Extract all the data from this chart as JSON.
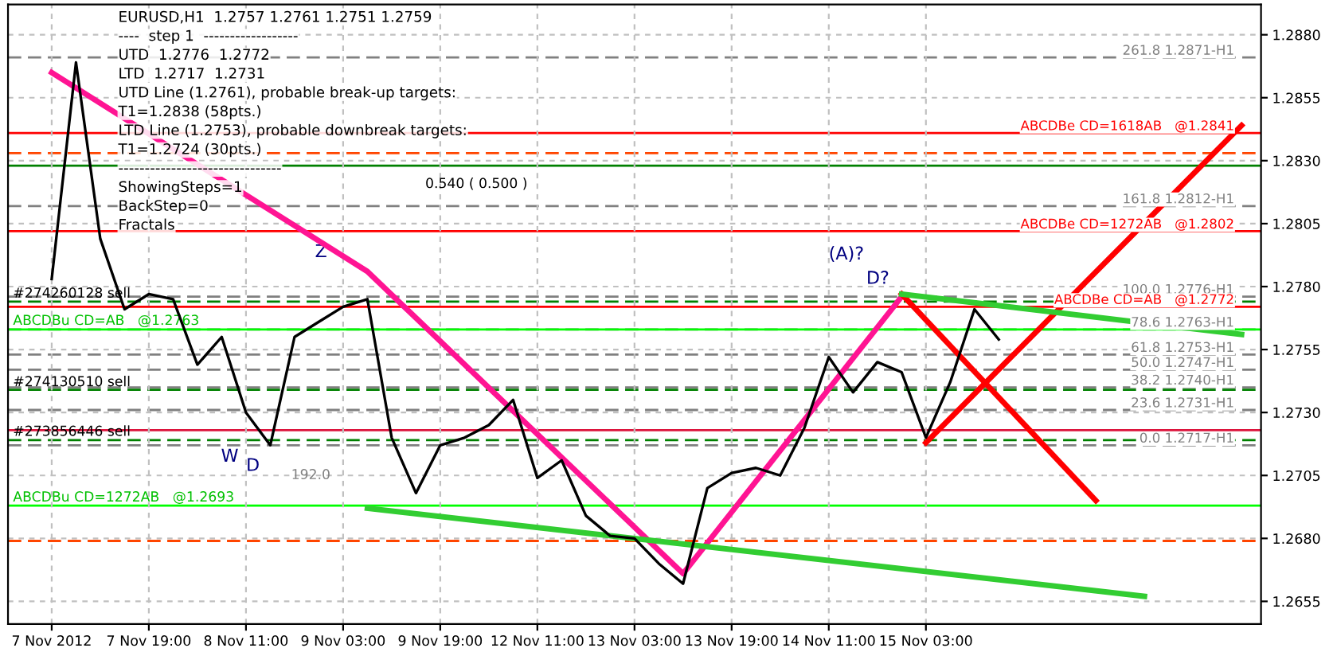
{
  "chart_data": {
    "type": "line",
    "categories": [
      "7 Nov 2012",
      null,
      null,
      null,
      "7 Nov 19:00",
      null,
      null,
      null,
      "8 Nov 11:00",
      null,
      null,
      null,
      "9 Nov 03:00",
      null,
      null,
      null,
      "9 Nov 19:00",
      null,
      null,
      null,
      "12 Nov 11:00",
      null,
      null,
      null,
      "13 Nov 03:00",
      null,
      null,
      null,
      "13 Nov 19:00",
      null,
      null,
      null,
      "14 Nov 11:00",
      null,
      null,
      null,
      "15 Nov 03:00",
      null,
      null,
      null,
      null,
      null,
      null,
      null,
      null,
      null,
      null,
      null,
      null,
      null
    ],
    "series": [
      {
        "color": "#000000",
        "values": [
          1.2783,
          1.2869,
          1.2799,
          1.2771,
          1.2777,
          1.2775,
          1.2749,
          1.276,
          1.273,
          1.2717,
          1.276,
          1.2766,
          1.2772,
          1.2775,
          1.272,
          1.2698,
          1.2717,
          1.272,
          1.2725,
          1.2735,
          1.2704,
          1.2711,
          1.2689,
          1.2681,
          1.268,
          1.267,
          1.2662,
          1.27,
          1.2706,
          1.2708,
          1.2705,
          1.2724,
          1.2752,
          1.2738,
          1.275,
          1.2746,
          1.272,
          1.2742,
          1.2771,
          1.2759,
          null,
          null,
          null,
          null,
          null,
          null,
          null,
          null,
          null,
          null
        ]
      },
      {
        "color": "#ff1493",
        "values": [
          1.2865,
          null,
          null,
          null,
          null,
          null,
          null,
          null,
          null,
          null,
          null,
          null,
          null,
          1.2786,
          null,
          null,
          null,
          null,
          null,
          null,
          null,
          null,
          null,
          null,
          null,
          null,
          1.2666,
          null,
          null,
          null,
          null,
          null,
          null,
          null,
          null,
          1.2776,
          null,
          null,
          null,
          null,
          null,
          null,
          null,
          null,
          null,
          null,
          null,
          null,
          null,
          null
        ]
      },
      {
        "color": "#ff0000",
        "values": [
          null,
          null,
          null,
          null,
          null,
          null,
          null,
          null,
          null,
          null,
          null,
          null,
          null,
          null,
          null,
          null,
          null,
          null,
          null,
          null,
          null,
          null,
          null,
          null,
          null,
          null,
          null,
          null,
          null,
          null,
          null,
          null,
          null,
          null,
          null,
          1.2777,
          null,
          null,
          null,
          null,
          null,
          null,
          null,
          1.2695,
          null,
          null,
          null,
          null,
          null,
          null
        ]
      },
      {
        "color": "#ff0000",
        "values": [
          null,
          null,
          null,
          null,
          null,
          null,
          null,
          null,
          null,
          null,
          null,
          null,
          null,
          null,
          null,
          null,
          null,
          null,
          null,
          null,
          null,
          null,
          null,
          null,
          null,
          null,
          null,
          null,
          null,
          null,
          null,
          null,
          null,
          null,
          null,
          null,
          1.2718,
          null,
          null,
          null,
          null,
          null,
          null,
          null,
          null,
          null,
          null,
          null,
          null,
          1.2844
        ]
      },
      {
        "color": "#32cd32",
        "values": [
          null,
          null,
          null,
          null,
          null,
          null,
          null,
          null,
          null,
          null,
          null,
          null,
          null,
          null,
          null,
          null,
          null,
          null,
          null,
          null,
          null,
          null,
          null,
          null,
          null,
          null,
          null,
          null,
          null,
          null,
          null,
          null,
          null,
          null,
          null,
          1.2777,
          null,
          null,
          null,
          null,
          null,
          null,
          null,
          null,
          null,
          null,
          null,
          null,
          null,
          1.2761
        ]
      },
      {
        "color": "#32cd32",
        "values": [
          null,
          null,
          null,
          null,
          null,
          null,
          null,
          null,
          null,
          null,
          null,
          null,
          null,
          1.2692,
          null,
          null,
          null,
          null,
          null,
          null,
          null,
          null,
          null,
          null,
          null,
          null,
          null,
          null,
          null,
          null,
          null,
          null,
          null,
          null,
          null,
          null,
          null,
          null,
          null,
          null,
          null,
          null,
          null,
          null,
          null,
          1.2657,
          null,
          null,
          null,
          null
        ]
      }
    ],
    "ylim": [
      1.2646,
      1.2892
    ],
    "yticks": [
      1.2655,
      {
        "value": 1.268,
        "label": "1.2680"
      },
      1.2705,
      {
        "value": 1.273,
        "label": "1.2730"
      },
      1.2755,
      {
        "value": 1.278,
        "label": "1.2780"
      },
      1.2805,
      {
        "value": 1.283,
        "label": "1.2830"
      },
      1.2855,
      {
        "value": 1.288,
        "label": "1.2880"
      }
    ],
    "grid": true,
    "legend": false,
    "line_style": "solid",
    "marker": "none",
    "ref_lines": [
      {
        "axis": "y",
        "value": 1.2871,
        "label": "261.8 1.2871-H1",
        "color": "#808080",
        "line_style": "dashed"
      },
      {
        "axis": "y",
        "value": 1.2812,
        "label": "161.8 1.2812-H1",
        "color": "#808080",
        "line_style": "dashed"
      },
      {
        "axis": "y",
        "value": 1.2776,
        "label": "100.0 1.2776-H1",
        "color": "#808080",
        "line_style": "dashed"
      },
      {
        "axis": "y",
        "value": 1.2763,
        "label": "78.6 1.2763-H1",
        "color": "#808080",
        "line_style": "dashed"
      },
      {
        "axis": "y",
        "value": 1.2753,
        "label": "61.8 1.2753-H1",
        "color": "#808080",
        "line_style": "dashed"
      },
      {
        "axis": "y",
        "value": 1.2747,
        "label": "50.0 1.2747-H1",
        "color": "#808080",
        "line_style": "dashed"
      },
      {
        "axis": "y",
        "value": 1.274,
        "label": "38.2 1.2740-H1",
        "color": "#808080",
        "line_style": "dashed"
      },
      {
        "axis": "y",
        "value": 1.2731,
        "label": "23.6 1.2731-H1",
        "color": "#808080",
        "line_style": "dashed"
      },
      {
        "axis": "y",
        "value": 1.2717,
        "label": "0.0 1.2717-H1",
        "color": "#808080",
        "line_style": "dashed"
      },
      {
        "axis": "y",
        "value": 1.2841,
        "label": "ABCDBe CD=1618AB   @1.2841",
        "color": "#ff0000",
        "line_style": "solid"
      },
      {
        "axis": "y",
        "value": 1.2802,
        "label": "ABCDBe CD=1272AB   @1.2802",
        "color": "#ff0000",
        "line_style": "solid"
      },
      {
        "axis": "y",
        "value": 1.2772,
        "label": "ABCDBe CD=AB   @1.2772",
        "color": "#ff0000",
        "line_style": "solid"
      },
      {
        "axis": "y",
        "value": 1.2828,
        "color": "#008000",
        "line_style": "solid"
      },
      {
        "axis": "y",
        "value": 1.2723,
        "color": "#dc143c",
        "line_style": "solid"
      },
      {
        "axis": "y",
        "value": 1.2774,
        "color": "#008000",
        "line_style": "dashed"
      },
      {
        "axis": "y",
        "value": 1.2739,
        "color": "#008000",
        "line_style": "dashed"
      },
      {
        "axis": "y",
        "value": 1.2719,
        "color": "#008000",
        "line_style": "dashed"
      },
      {
        "axis": "y",
        "value": 1.2833,
        "color": "#ff4500",
        "line_style": "dashed"
      },
      {
        "axis": "y",
        "value": 1.2679,
        "color": "#ff4500",
        "line_style": "dashed"
      },
      {
        "axis": "y",
        "value": 1.2763,
        "color": "#00ff00",
        "line_style": "solid"
      },
      {
        "axis": "y",
        "value": 1.2693,
        "color": "#00ff00",
        "line_style": "solid"
      }
    ],
    "annotations": [
      "EURUSD,H1  1.2757 1.2761 1.2751 1.2759",
      "----  step 1  ------------------",
      "UTD  1.2776  1.2772",
      "LTD  1.2717  1.2731",
      "UTD Line (1.2761), probable break-up targets:",
      "T1=1.2838 (58pts.)",
      "LTD Line (1.2753), probable downbreak targets:",
      "T1=1.2724 (30pts.)",
      "-------------------------------",
      "ShowingSteps=1",
      "BackStep=0",
      "Fractals",
      "#274260128 sell",
      "#274130510 sell",
      "#273856446 sell",
      "ABCDBu CD=AB   @1.2763",
      "ABCDBu CD=1272AB   @1.2693",
      "0.540 ( 0.500 )",
      "192.0",
      "W",
      "D",
      "Z",
      {
        "text": "(A)?",
        "y": 1.2777
      },
      {
        "text": "D?",
        "y": 1.2777
      }
    ]
  }
}
